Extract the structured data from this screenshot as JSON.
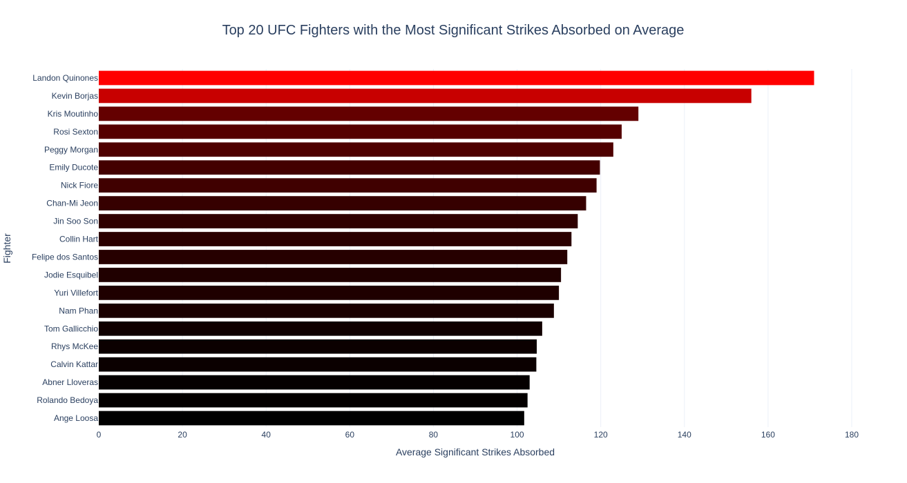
{
  "chart_data": {
    "type": "bar",
    "orientation": "horizontal",
    "title": "Top 20 UFC Fighters with the Most Significant Strikes Absorbed on Average",
    "xlabel": "Average Significant Strikes Absorbed",
    "ylabel": "Fighter",
    "xlim": [
      0,
      180
    ],
    "xticks": [
      0,
      20,
      40,
      60,
      80,
      100,
      120,
      140,
      160,
      180
    ],
    "grid": true,
    "colorscale": [
      "#000000",
      "#ff0000"
    ],
    "categories": [
      "Landon Quinones",
      "Kevin Borjas",
      "Kris Moutinho",
      "Rosi Sexton",
      "Peggy Morgan",
      "Emily Ducote",
      "Nick Fiore",
      "Chan-Mi Jeon",
      "Jin Soo Son",
      "Collin Hart",
      "Felipe dos Santos",
      "Jodie Esquibel",
      "Yuri Villefort",
      "Nam Phan",
      "Tom Gallicchio",
      "Rhys McKee",
      "Calvin Kattar",
      "Abner Lloveras",
      "Rolando Bedoya",
      "Ange Loosa"
    ],
    "values": [
      171,
      156,
      129,
      125,
      123,
      119.8,
      119,
      116.5,
      114.5,
      113,
      112,
      110.5,
      110,
      108.8,
      106,
      104.7,
      104.6,
      103,
      102.5,
      101.7
    ]
  }
}
